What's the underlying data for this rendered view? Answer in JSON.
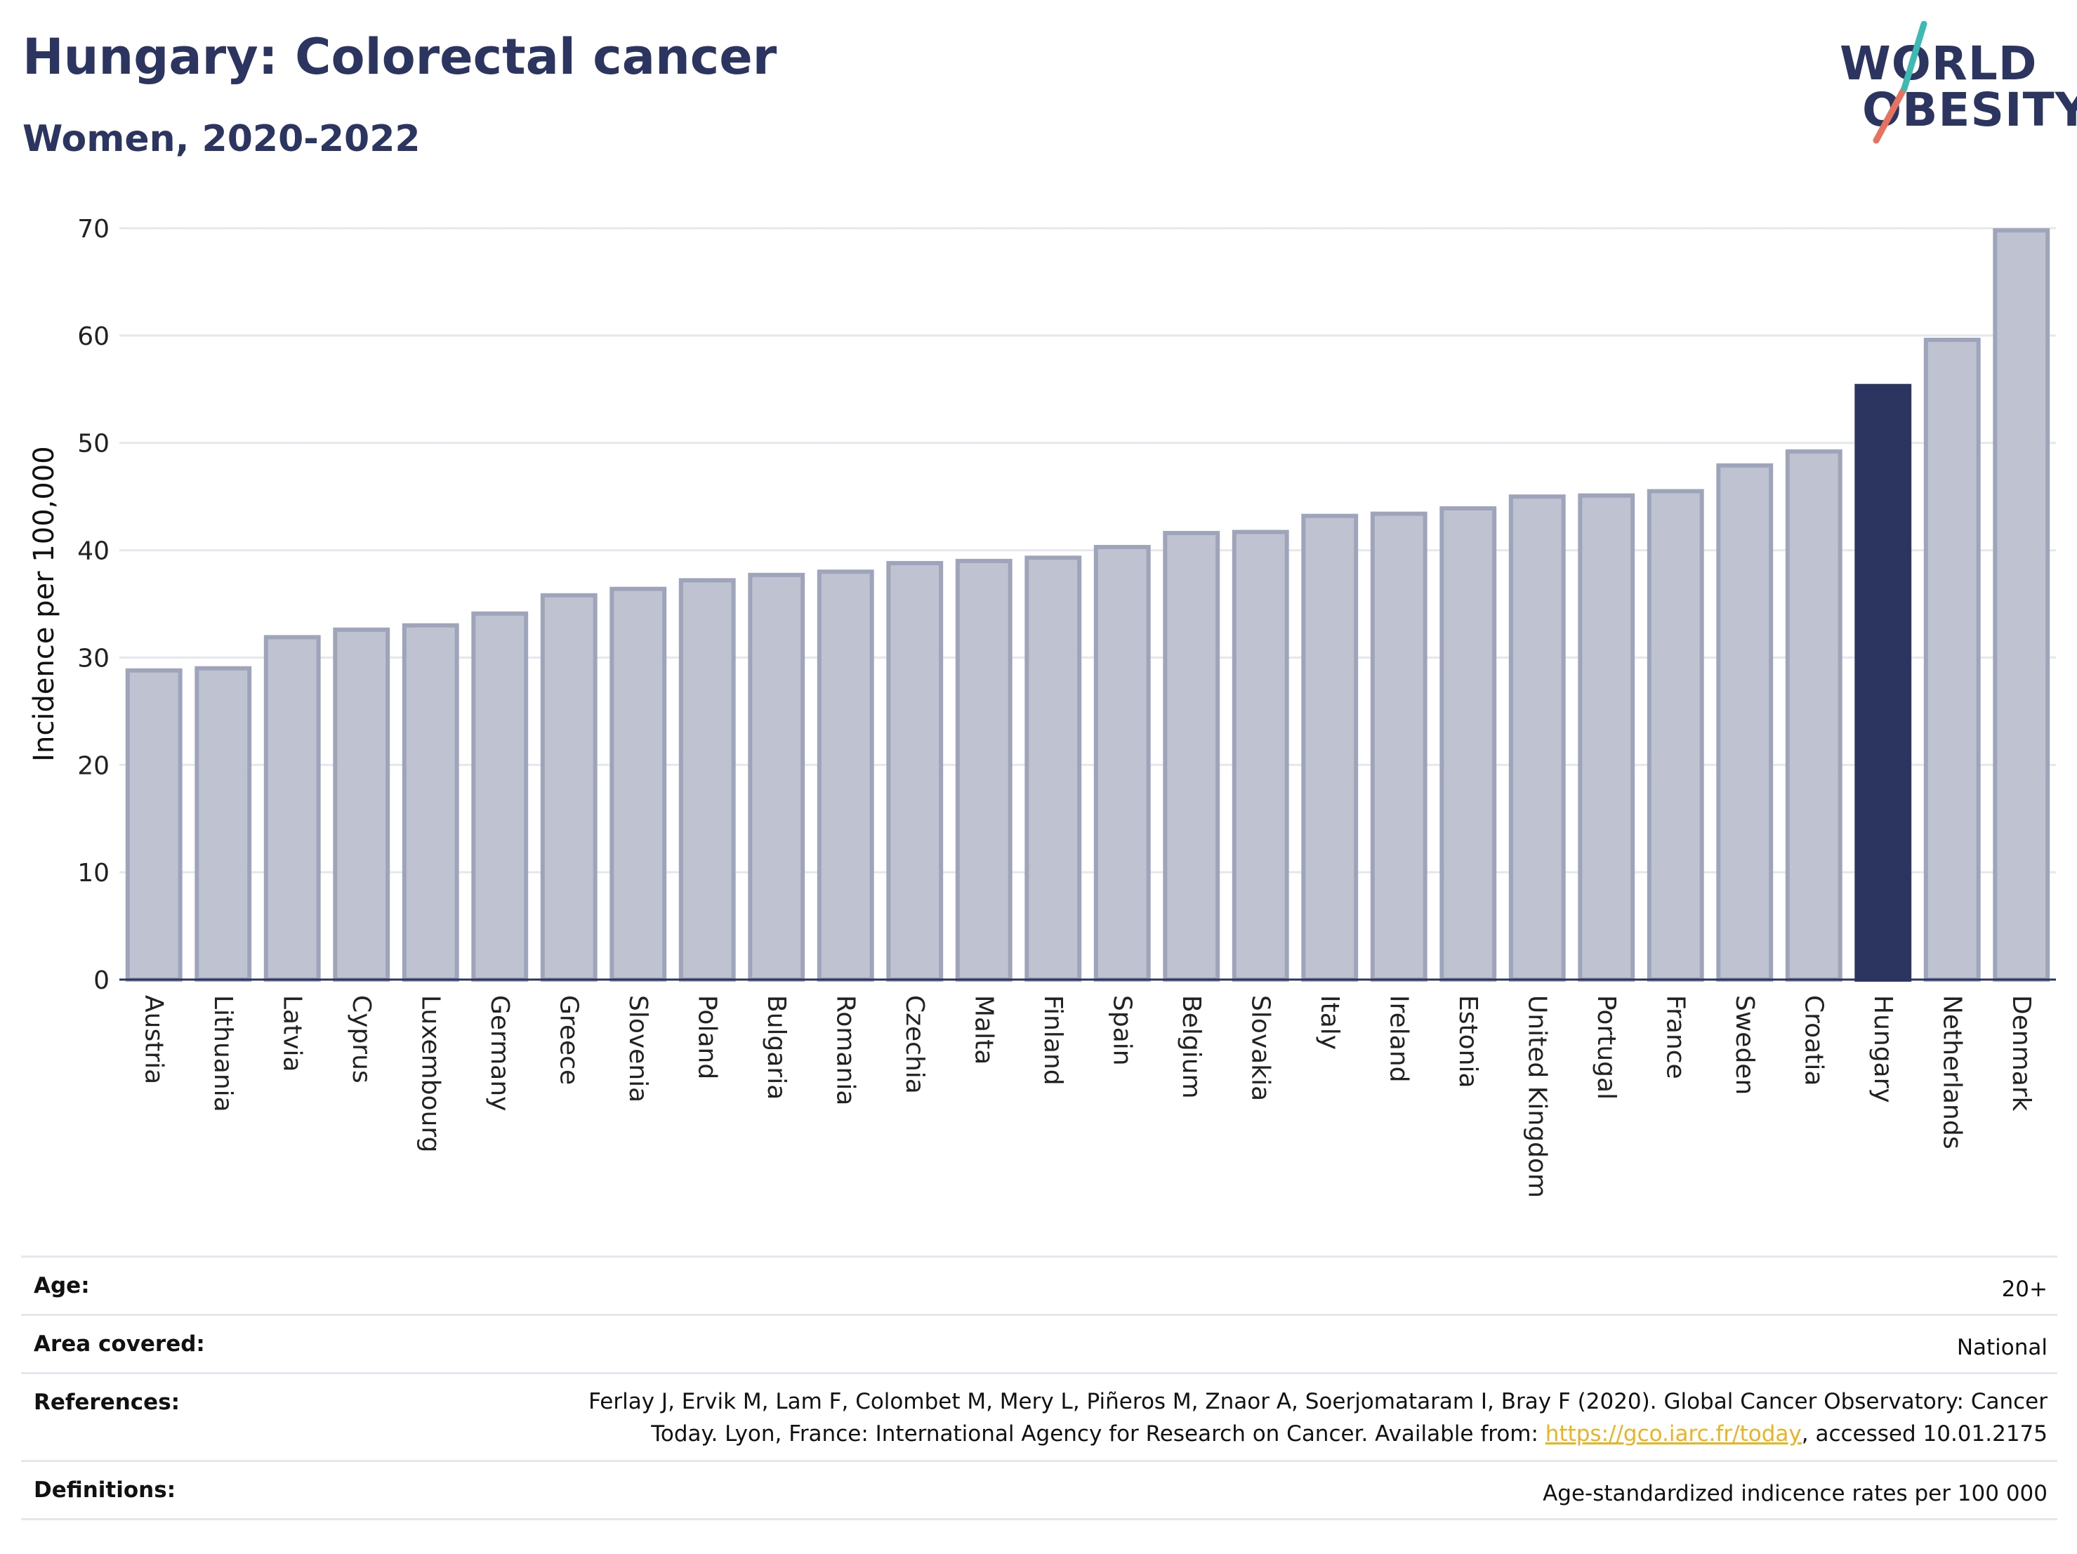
{
  "header": {
    "title": "Hungary: Colorectal cancer",
    "subtitle": "Women, 2020-2022"
  },
  "logo": {
    "line1": "WORLD",
    "line2": "OBESITY"
  },
  "colors": {
    "bar_default": "#bfc3d1",
    "bar_default_stroke": "#9ea4ba",
    "bar_highlight": "#2b3560",
    "text": "#2b3560",
    "grid": "#e4e8ee",
    "link": "#e8b424"
  },
  "chart_data": {
    "type": "bar",
    "ylabel": "Incidence per 100,000",
    "ylim": [
      0,
      70
    ],
    "yticks": [
      0,
      10,
      20,
      30,
      40,
      50,
      60,
      70
    ],
    "grid": true,
    "highlight": "Hungary",
    "categories": [
      "Austria",
      "Lithuania",
      "Latvia",
      "Cyprus",
      "Luxembourg",
      "Germany",
      "Greece",
      "Slovenia",
      "Poland",
      "Bulgaria",
      "Romania",
      "Czechia",
      "Malta",
      "Finland",
      "Spain",
      "Belgium",
      "Slovakia",
      "Italy",
      "Ireland",
      "Estonia",
      "United Kingdom",
      "Portugal",
      "France",
      "Sweden",
      "Croatia",
      "Hungary",
      "Netherlands",
      "Denmark"
    ],
    "values": [
      28.8,
      29.0,
      31.9,
      32.6,
      33.0,
      34.1,
      35.8,
      36.4,
      37.2,
      37.7,
      38.0,
      38.8,
      39.0,
      39.3,
      40.3,
      41.6,
      41.7,
      43.2,
      43.4,
      43.9,
      45.0,
      45.1,
      45.5,
      47.9,
      49.2,
      55.3,
      59.6,
      69.8
    ]
  },
  "meta": {
    "age_label": "Age:",
    "age_value": "20+",
    "area_label": "Area covered:",
    "area_value": "National",
    "references_label": "References:",
    "references_line1": "Ferlay J, Ervik M, Lam F, Colombet M, Mery L, Piñeros M, Znaor A, Soerjomataram I, Bray F (2020). Global Cancer Observatory: Cancer",
    "references_line2_pre": "Today. Lyon, France: International Agency for Research on Cancer. Available from: ",
    "references_link": "https://gco.iarc.fr/today",
    "references_line2_post": ", accessed 10.01.2175",
    "definitions_label": "Definitions:",
    "definitions_value": "Age-standardized indicence rates per 100 000"
  }
}
